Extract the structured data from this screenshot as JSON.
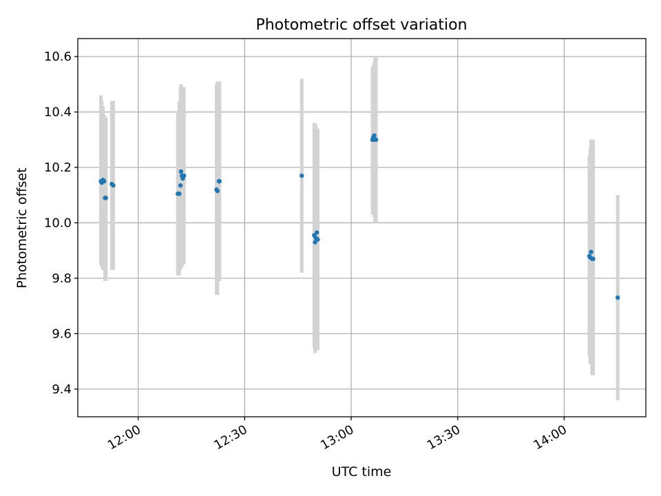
{
  "chart_data": {
    "type": "scatter",
    "title": "Photometric offset variation",
    "xlabel": "UTC time",
    "ylabel": "Photometric offset",
    "grid": true,
    "x_is_time": true,
    "xlim": [
      "11:43",
      "14:23"
    ],
    "ylim": [
      9.3,
      10.665
    ],
    "x_ticks": [
      {
        "time": "12:00",
        "label": "12:00"
      },
      {
        "time": "12:30",
        "label": "12:30"
      },
      {
        "time": "13:00",
        "label": "13:00"
      },
      {
        "time": "13:30",
        "label": "13:30"
      },
      {
        "time": "14:00",
        "label": "14:00"
      }
    ],
    "y_ticks": [
      9.4,
      9.6,
      9.8,
      10.0,
      10.2,
      10.4,
      10.6
    ],
    "y_tick_labels": [
      "9.4",
      "9.6",
      "9.8",
      "10.0",
      "10.2",
      "10.4",
      "10.6"
    ],
    "marker_color": "#1f77b4",
    "errorbar_color": "#d3d3d3",
    "points": [
      {
        "time": "11:49:30",
        "y": 10.15,
        "ylow": 9.85,
        "yhigh": 10.46
      },
      {
        "time": "11:49:45",
        "y": 10.145,
        "ylow": 9.84,
        "yhigh": 10.44
      },
      {
        "time": "11:50:05",
        "y": 10.155,
        "ylow": 9.83,
        "yhigh": 10.42
      },
      {
        "time": "11:50:25",
        "y": 10.15,
        "ylow": 9.83,
        "yhigh": 10.39
      },
      {
        "time": "11:50:40",
        "y": 10.09,
        "ylow": 9.79,
        "yhigh": 10.38
      },
      {
        "time": "11:50:55",
        "y": 10.09,
        "ylow": 9.79,
        "yhigh": 10.38
      },
      {
        "time": "11:52:35",
        "y": 10.14,
        "ylow": 9.83,
        "yhigh": 10.44
      },
      {
        "time": "11:53:00",
        "y": 10.135,
        "ylow": 9.83,
        "yhigh": 10.44
      },
      {
        "time": "12:11:10",
        "y": 10.105,
        "ylow": 9.81,
        "yhigh": 10.4
      },
      {
        "time": "12:11:35",
        "y": 10.105,
        "ylow": 9.81,
        "yhigh": 10.44
      },
      {
        "time": "12:11:55",
        "y": 10.135,
        "ylow": 9.83,
        "yhigh": 10.49
      },
      {
        "time": "12:12:05",
        "y": 10.185,
        "ylow": 9.85,
        "yhigh": 10.5
      },
      {
        "time": "12:12:20",
        "y": 10.17,
        "ylow": 9.84,
        "yhigh": 10.48
      },
      {
        "time": "12:12:35",
        "y": 10.16,
        "ylow": 9.85,
        "yhigh": 10.49
      },
      {
        "time": "12:12:55",
        "y": 10.17,
        "ylow": 9.85,
        "yhigh": 10.49
      },
      {
        "time": "12:22:05",
        "y": 10.12,
        "ylow": 9.74,
        "yhigh": 10.5
      },
      {
        "time": "12:22:20",
        "y": 10.115,
        "ylow": 9.74,
        "yhigh": 10.51
      },
      {
        "time": "12:22:45",
        "y": 10.15,
        "ylow": 9.79,
        "yhigh": 10.51
      },
      {
        "time": "12:22:55",
        "y": 10.15,
        "ylow": 9.79,
        "yhigh": 10.51
      },
      {
        "time": "12:46:05",
        "y": 10.17,
        "ylow": 9.82,
        "yhigh": 10.52
      },
      {
        "time": "12:49:35",
        "y": 9.955,
        "ylow": 9.55,
        "yhigh": 10.36
      },
      {
        "time": "12:49:50",
        "y": 9.93,
        "ylow": 9.53,
        "yhigh": 10.36
      },
      {
        "time": "12:50:05",
        "y": 9.945,
        "ylow": 9.54,
        "yhigh": 10.35
      },
      {
        "time": "12:50:20",
        "y": 9.965,
        "ylow": 9.54,
        "yhigh": 10.34
      },
      {
        "time": "12:50:35",
        "y": 9.94,
        "ylow": 9.54,
        "yhigh": 10.34
      },
      {
        "time": "13:06:00",
        "y": 10.3,
        "ylow": 10.03,
        "yhigh": 10.56
      },
      {
        "time": "13:06:15",
        "y": 10.31,
        "ylow": 10.04,
        "yhigh": 10.57
      },
      {
        "time": "13:06:30",
        "y": 10.315,
        "ylow": 10.02,
        "yhigh": 10.58
      },
      {
        "time": "13:06:45",
        "y": 10.3,
        "ylow": 10.0,
        "yhigh": 10.6
      },
      {
        "time": "13:07:00",
        "y": 10.3,
        "ylow": 10.0,
        "yhigh": 10.6
      },
      {
        "time": "14:07:05",
        "y": 9.88,
        "ylow": 9.52,
        "yhigh": 10.24
      },
      {
        "time": "14:07:20",
        "y": 9.875,
        "ylow": 9.49,
        "yhigh": 10.27
      },
      {
        "time": "14:07:35",
        "y": 9.895,
        "ylow": 9.49,
        "yhigh": 10.3
      },
      {
        "time": "14:07:50",
        "y": 9.87,
        "ylow": 9.45,
        "yhigh": 10.3
      },
      {
        "time": "14:08:10",
        "y": 9.87,
        "ylow": 9.45,
        "yhigh": 10.3
      },
      {
        "time": "14:15:05",
        "y": 9.73,
        "ylow": 9.36,
        "yhigh": 10.1
      }
    ]
  }
}
